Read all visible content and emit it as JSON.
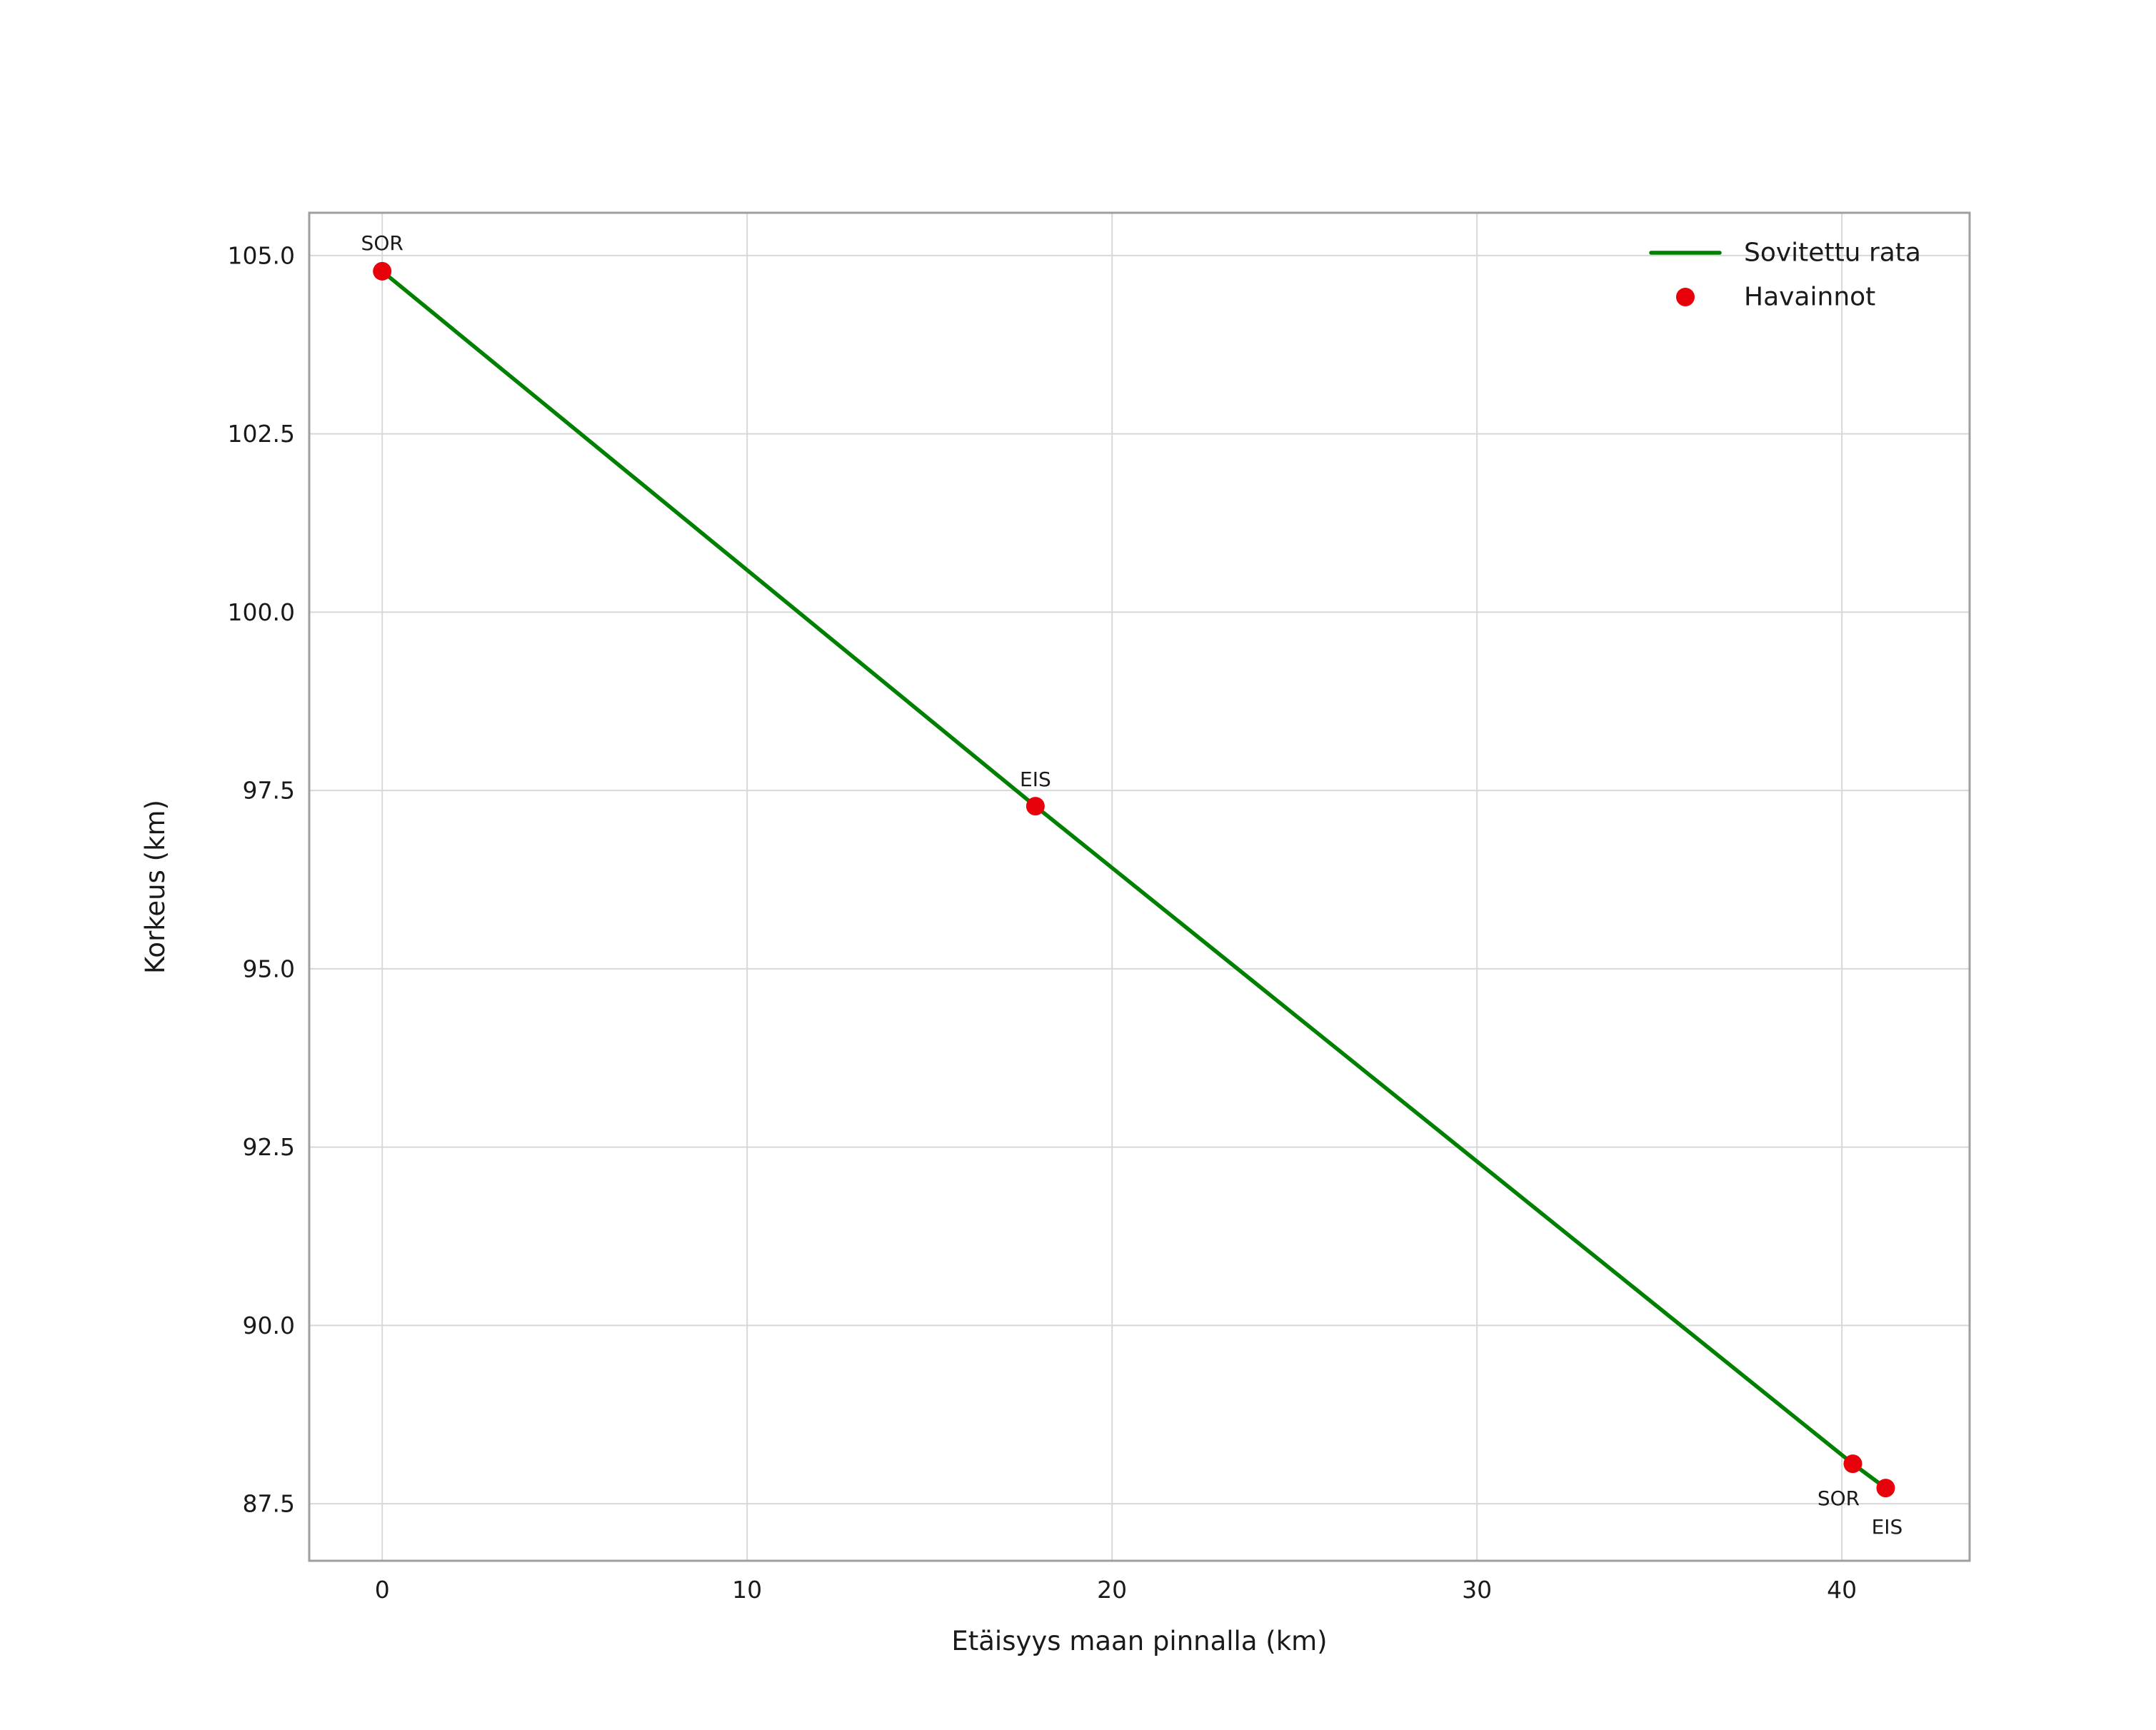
{
  "figure": {
    "background": "#ffffff"
  },
  "chart_data": {
    "type": "line",
    "title": "",
    "xlabel": "Etäisyys maan pinnalla (km)",
    "ylabel": "Korkeus (km)",
    "xlim": [
      -2.0,
      43.5
    ],
    "ylim": [
      86.7,
      105.6
    ],
    "grid": true,
    "x_ticks": [
      {
        "value": 0,
        "label": "0"
      },
      {
        "value": 10,
        "label": "10"
      },
      {
        "value": 20,
        "label": "20"
      },
      {
        "value": 30,
        "label": "30"
      },
      {
        "value": 40,
        "label": "40"
      }
    ],
    "y_ticks": [
      {
        "value": 87.5,
        "label": "87.5"
      },
      {
        "value": 90.0,
        "label": "90.0"
      },
      {
        "value": 92.5,
        "label": "92.5"
      },
      {
        "value": 95.0,
        "label": "95.0"
      },
      {
        "value": 97.5,
        "label": "97.5"
      },
      {
        "value": 100.0,
        "label": "100.0"
      },
      {
        "value": 102.5,
        "label": "102.5"
      },
      {
        "value": 105.0,
        "label": "105.0"
      }
    ],
    "series": [
      {
        "name": "Sovitettu rata",
        "type": "line",
        "color": "#008000",
        "points": [
          {
            "x": 0.0,
            "y": 104.78
          },
          {
            "x": 17.9,
            "y": 97.28
          },
          {
            "x": 40.3,
            "y": 88.06
          },
          {
            "x": 41.2,
            "y": 87.72
          }
        ]
      },
      {
        "name": "Havainnot",
        "type": "scatter",
        "color": "#e8000b",
        "points": [
          {
            "x": 0.0,
            "y": 104.78,
            "label": "SOR",
            "label_dx": 0,
            "label_dy": -30,
            "anchor": "middle"
          },
          {
            "x": 17.9,
            "y": 97.28,
            "label": "EIS",
            "label_dx": 0,
            "label_dy": -28,
            "anchor": "middle"
          },
          {
            "x": 40.3,
            "y": 88.06,
            "label": "SOR",
            "label_dx": -20,
            "label_dy": 58,
            "anchor": "middle"
          },
          {
            "x": 41.2,
            "y": 87.72,
            "label": "EIS",
            "label_dx": 2,
            "label_dy": 64,
            "anchor": "middle"
          }
        ]
      }
    ],
    "legend": {
      "position": "top-right",
      "items": [
        {
          "label": "Sovitettu rata",
          "type": "line",
          "color": "#008000"
        },
        {
          "label": "Havainnot",
          "type": "marker",
          "color": "#e8000b"
        }
      ]
    },
    "colors": {
      "grid": "#d8d8d8",
      "frame": "#9f9f9f",
      "text": "#1a1a1a"
    }
  }
}
